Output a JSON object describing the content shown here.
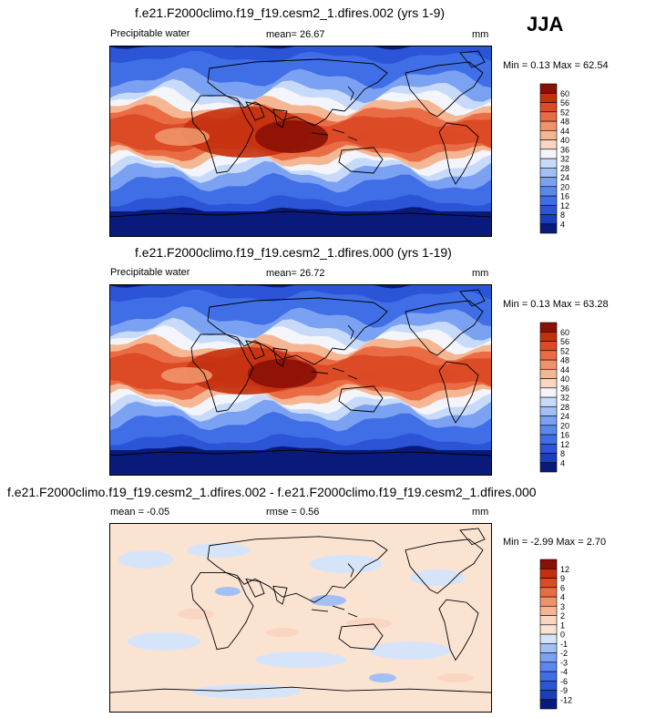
{
  "season": "JJA",
  "panels": [
    {
      "title": "f.e21.F2000climo.f19_f19.cesm2_1.dfires.002 (yrs 1-9)",
      "left_label": "Precipitable water",
      "center_label": "mean=  26.67",
      "units": "mm",
      "minmax": "Min =  0.13 Max =  62.54"
    },
    {
      "title": "f.e21.F2000climo.f19_f19.cesm2_1.dfires.000 (yrs 1-19)",
      "left_label": "Precipitable water",
      "center_label": "mean=  26.72",
      "units": "mm",
      "minmax": "Min =  0.13 Max =  63.28"
    },
    {
      "title": "f.e21.F2000climo.f19_f19.cesm2_1.dfires.002 - f.e21.F2000climo.f19_f19.cesm2_1.dfires.000",
      "left_label": "mean =  -0.05",
      "center_label": "rmse =  0.56",
      "units": "mm",
      "minmax": "Min = -2.99 Max =  2.70"
    }
  ],
  "chart_data": [
    {
      "type": "heatmap",
      "title": "f.e21.F2000climo.f19_f19.cesm2_1.dfires.002 (yrs 1-9)",
      "variable": "Precipitable water",
      "units": "mm",
      "mean": 26.67,
      "min": 0.13,
      "max": 62.54,
      "levels": [
        4,
        8,
        12,
        16,
        20,
        24,
        28,
        32,
        36,
        40,
        44,
        48,
        52,
        56,
        60
      ],
      "colors": [
        "#0a1a7a",
        "#1a3fb8",
        "#2b55d6",
        "#3f6ee6",
        "#5b88ee",
        "#7ba2f2",
        "#a3c0f6",
        "#c8dafa",
        "#f3f5fb",
        "#f9d6c1",
        "#f5b793",
        "#f0936a",
        "#ea6c45",
        "#dc4a26",
        "#c4300e",
        "#8a0f05"
      ]
    },
    {
      "type": "heatmap",
      "title": "f.e21.F2000climo.f19_f19.cesm2_1.dfires.000 (yrs 1-19)",
      "variable": "Precipitable water",
      "units": "mm",
      "mean": 26.72,
      "min": 0.13,
      "max": 63.28,
      "levels": [
        4,
        8,
        12,
        16,
        20,
        24,
        28,
        32,
        36,
        40,
        44,
        48,
        52,
        56,
        60
      ],
      "colors": [
        "#0a1a7a",
        "#1a3fb8",
        "#2b55d6",
        "#3f6ee6",
        "#5b88ee",
        "#7ba2f2",
        "#a3c0f6",
        "#c8dafa",
        "#f3f5fb",
        "#f9d6c1",
        "#f5b793",
        "#f0936a",
        "#ea6c45",
        "#dc4a26",
        "#c4300e",
        "#8a0f05"
      ]
    },
    {
      "type": "heatmap",
      "title": "f.e21.F2000climo.f19_f19.cesm2_1.dfires.002 - f.e21.F2000climo.f19_f19.cesm2_1.dfires.000",
      "units": "mm",
      "mean": -0.05,
      "rmse": 0.56,
      "min": -2.99,
      "max": 2.7,
      "levels": [
        -12,
        -9,
        -6,
        -4,
        -3,
        -2,
        -1,
        0,
        1,
        2,
        3,
        4,
        6,
        9,
        12
      ],
      "colors": [
        "#0a1a7a",
        "#1a3fb8",
        "#2b55d6",
        "#3f6ee6",
        "#5b88ee",
        "#7ba2f2",
        "#a3c0f6",
        "#d6e4fa",
        "#fbe3d2",
        "#f9d6c1",
        "#f5b793",
        "#f0936a",
        "#ea6c45",
        "#dc4a26",
        "#c4300e",
        "#8a0f05"
      ]
    }
  ]
}
